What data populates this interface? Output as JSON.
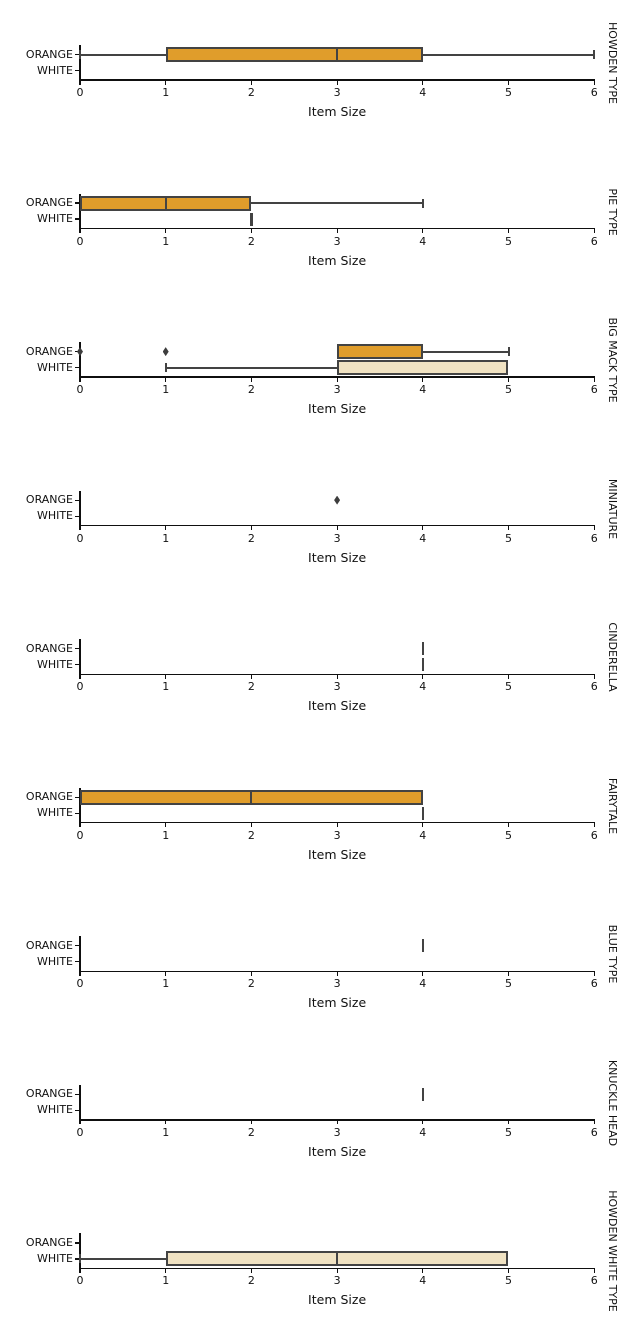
{
  "chart_data": {
    "type": "box",
    "orientation": "horizontal",
    "xlabel": "Item Size",
    "xlim": [
      0,
      6
    ],
    "x_ticks": [
      "0",
      "1",
      "2",
      "3",
      "4",
      "5",
      "6"
    ],
    "categories": [
      "ORANGE",
      "WHITE"
    ],
    "grid": false,
    "legend": "none",
    "colors": {
      "orange_box_fill": "#E09D2B",
      "white_box_fill": "#F0E2C2",
      "box_line": "#434343",
      "axis": "#0f0f0f"
    },
    "panels": [
      {
        "label": "HOWDEN TYPE",
        "rows": [
          {
            "category": "ORANGE",
            "kind": "box",
            "whisker_low": 0,
            "q1": 1,
            "median": 3,
            "q3": 4,
            "whisker_high": 6,
            "outliers": []
          },
          {
            "category": "WHITE",
            "kind": "none"
          }
        ]
      },
      {
        "label": "PIE TYPE",
        "rows": [
          {
            "category": "ORANGE",
            "kind": "box",
            "whisker_low": 0,
            "q1": 0,
            "median": 1,
            "q3": 2,
            "whisker_high": 4,
            "outliers": []
          },
          {
            "category": "WHITE",
            "kind": "line",
            "value": 2
          }
        ]
      },
      {
        "label": "BIG MACK TYPE",
        "rows": [
          {
            "category": "ORANGE",
            "kind": "box",
            "whisker_low": 3,
            "q1": 3,
            "median": null,
            "q3": 4,
            "whisker_high": 5,
            "outliers": [
              0,
              1
            ]
          },
          {
            "category": "WHITE",
            "kind": "box",
            "whisker_low": 1,
            "q1": 3,
            "median": null,
            "q3": 5,
            "whisker_high": 5,
            "outliers": []
          }
        ]
      },
      {
        "label": "MINIATURE",
        "rows": [
          {
            "category": "ORANGE",
            "kind": "outliers",
            "outliers": [
              3
            ]
          },
          {
            "category": "WHITE",
            "kind": "none"
          }
        ]
      },
      {
        "label": "CINDERELLA",
        "rows": [
          {
            "category": "ORANGE",
            "kind": "line",
            "value": 4
          },
          {
            "category": "WHITE",
            "kind": "line",
            "value": 4
          }
        ]
      },
      {
        "label": "FAIRYTALE",
        "rows": [
          {
            "category": "ORANGE",
            "kind": "box",
            "whisker_low": 0,
            "q1": 0,
            "median": 2,
            "q3": 4,
            "whisker_high": 4,
            "outliers": []
          },
          {
            "category": "WHITE",
            "kind": "line",
            "value": 4
          }
        ]
      },
      {
        "label": "BLUE TYPE",
        "rows": [
          {
            "category": "ORANGE",
            "kind": "line",
            "value": 4
          },
          {
            "category": "WHITE",
            "kind": "none"
          }
        ]
      },
      {
        "label": "KNUCKLE HEAD",
        "rows": [
          {
            "category": "ORANGE",
            "kind": "line",
            "value": 4
          },
          {
            "category": "WHITE",
            "kind": "none"
          }
        ]
      },
      {
        "label": "HOWDEN WHITE TYPE",
        "rows": [
          {
            "category": "ORANGE",
            "kind": "none"
          },
          {
            "category": "WHITE",
            "kind": "box",
            "whisker_low": 0,
            "q1": 1,
            "median": 3,
            "q3": 5,
            "whisker_high": 5,
            "outliers": []
          }
        ]
      }
    ]
  }
}
